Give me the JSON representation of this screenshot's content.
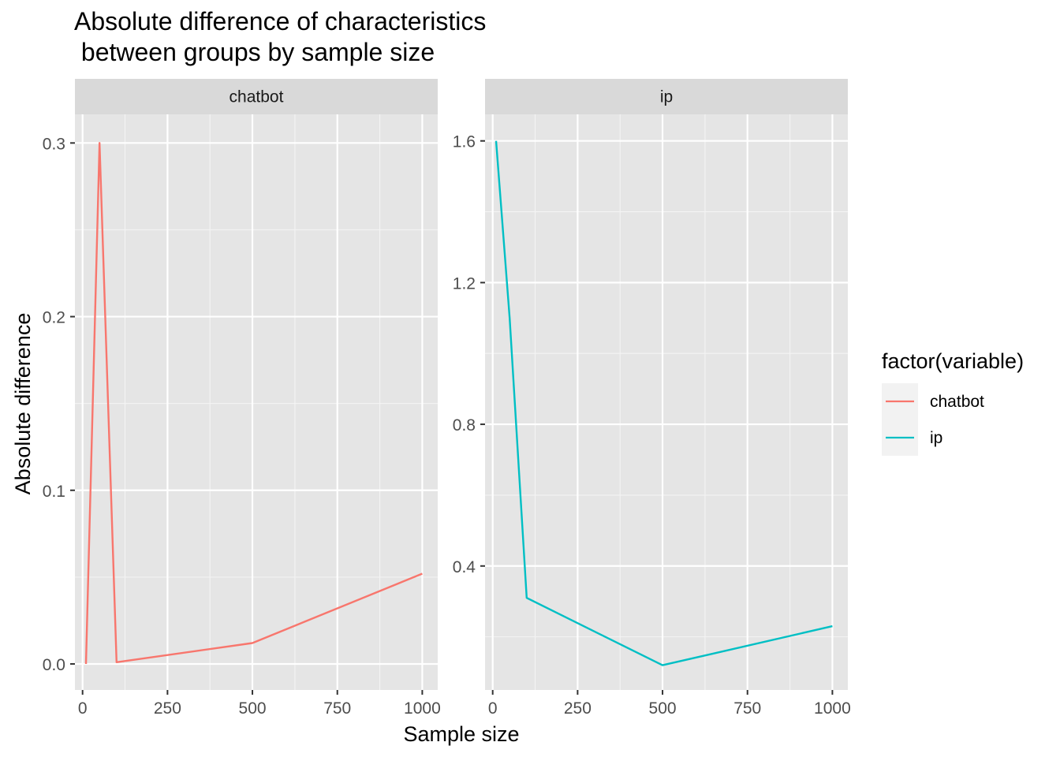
{
  "chart_data": {
    "type": "line",
    "title_lines": [
      "Absolute difference of characteristics",
      " between groups by sample size"
    ],
    "xlabel": "Sample size",
    "ylabel": "Absolute difference",
    "legend": {
      "title": "factor(variable)",
      "position": "right",
      "entries": [
        {
          "label": "chatbot",
          "color": "#F8766D"
        },
        {
          "label": "ip",
          "color": "#00BFC4"
        }
      ]
    },
    "panel_bg": "#E5E5E5",
    "strip_bg": "#D9D9D9",
    "grid": true,
    "panels": [
      {
        "strip": "chatbot",
        "color": "#F8766D",
        "xlim": [
          -22.5,
          1045.5
        ],
        "ylim": [
          -0.015,
          0.3165
        ],
        "xticks": [
          0,
          250,
          500,
          750,
          1000
        ],
        "xtick_labels": [
          "0",
          "250",
          "500",
          "750",
          "1000"
        ],
        "yticks": [
          0.0,
          0.1,
          0.2,
          0.3
        ],
        "ytick_labels": [
          "0.0",
          "0.1",
          "0.2",
          "0.3"
        ],
        "x": [
          10,
          50,
          100,
          500,
          1000
        ],
        "y": [
          0.0,
          0.3,
          0.001,
          0.012,
          0.052
        ]
      },
      {
        "strip": "ip",
        "color": "#00BFC4",
        "xlim": [
          -22.5,
          1045.5
        ],
        "ylim": [
          0.05,
          1.675
        ],
        "xticks": [
          0,
          250,
          500,
          750,
          1000
        ],
        "xtick_labels": [
          "0",
          "250",
          "500",
          "750",
          "1000"
        ],
        "yticks": [
          0.4,
          0.8,
          1.2,
          1.6
        ],
        "ytick_labels": [
          "0.4",
          "0.8",
          "1.2",
          "1.6"
        ],
        "x": [
          10,
          50,
          100,
          500,
          1000
        ],
        "y": [
          1.6,
          1.1,
          0.31,
          0.12,
          0.23
        ]
      }
    ]
  }
}
